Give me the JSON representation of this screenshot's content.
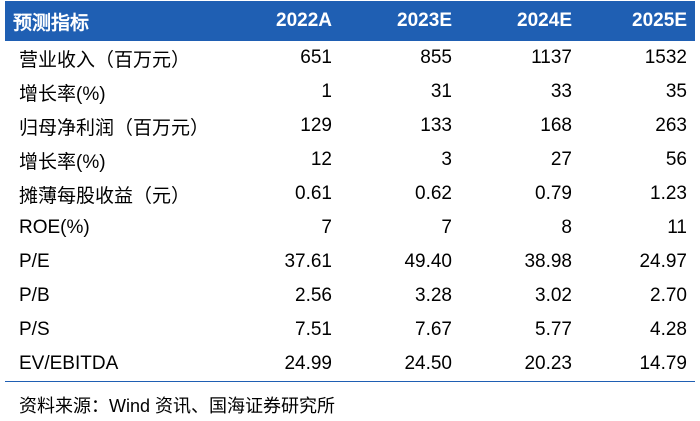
{
  "table": {
    "columns": [
      "预测指标",
      "2022A",
      "2023E",
      "2024E",
      "2025E"
    ],
    "rows": [
      [
        "营业收入（百万元）",
        "651",
        "855",
        "1137",
        "1532"
      ],
      [
        "增长率(%)",
        "1",
        "31",
        "33",
        "35"
      ],
      [
        "归母净利润（百万元）",
        "129",
        "133",
        "168",
        "263"
      ],
      [
        "增长率(%)",
        "12",
        "3",
        "27",
        "56"
      ],
      [
        "摊薄每股收益（元）",
        "0.61",
        "0.62",
        "0.79",
        "1.23"
      ],
      [
        "ROE(%)",
        "7",
        "7",
        "8",
        "11"
      ],
      [
        "P/E",
        "37.61",
        "49.40",
        "38.98",
        "24.97"
      ],
      [
        "P/B",
        "2.56",
        "3.28",
        "3.02",
        "2.70"
      ],
      [
        "P/S",
        "7.51",
        "7.67",
        "5.77",
        "4.28"
      ],
      [
        "EV/EBITDA",
        "24.99",
        "24.50",
        "20.23",
        "14.79"
      ]
    ]
  },
  "source": "资料来源：Wind 资讯、国海证券研究所",
  "colors": {
    "header_bg": "#1f5fb3",
    "header_text": "#ffffff",
    "body_text": "#000000"
  }
}
